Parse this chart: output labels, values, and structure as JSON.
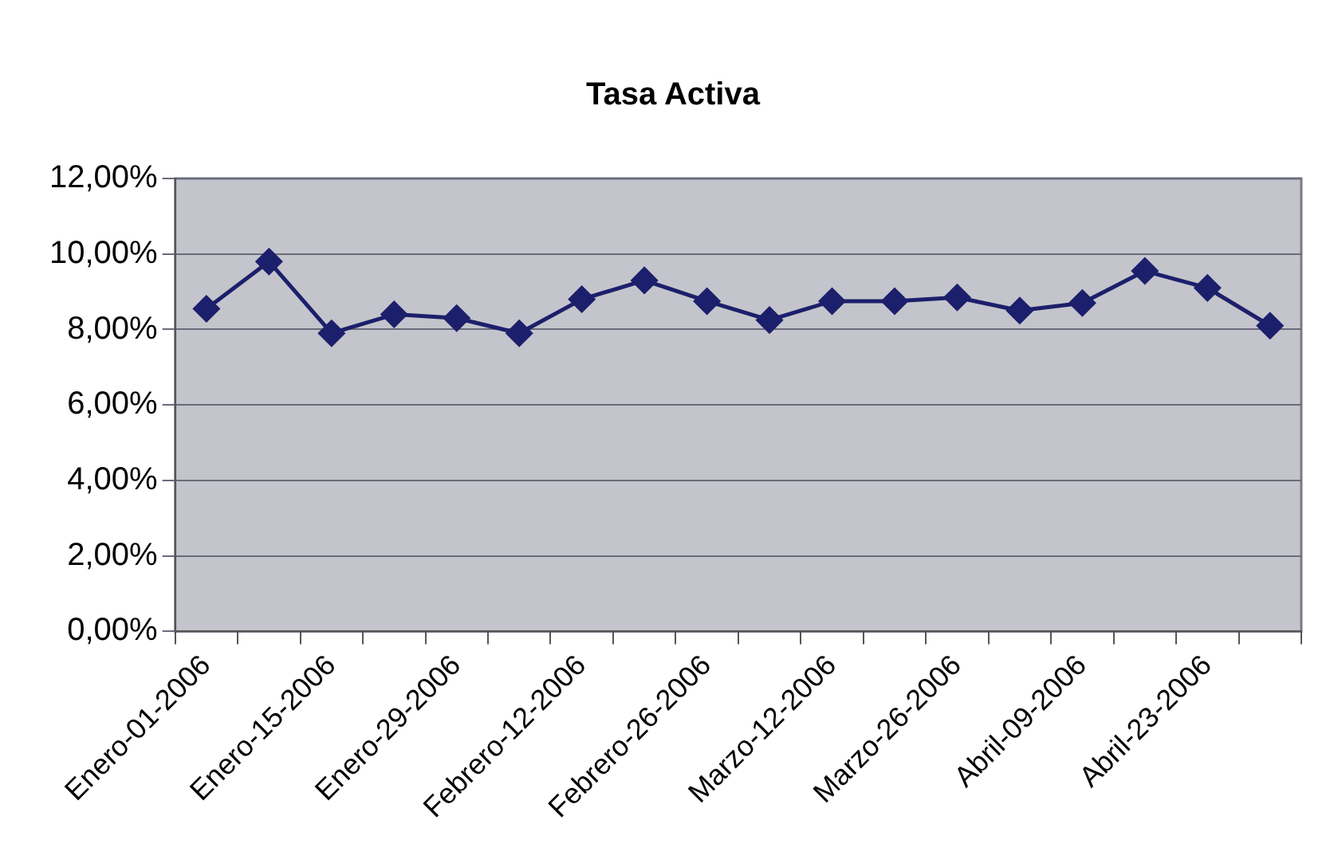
{
  "chart_data": {
    "type": "line",
    "title": "Tasa Activa",
    "categories": [
      "Enero-01-2006",
      null,
      "Enero-15-2006",
      null,
      "Enero-29-2006",
      null,
      "Febrero-12-2006",
      null,
      "Febrero-26-2006",
      null,
      "Marzo-12-2006",
      null,
      "Marzo-26-2006",
      null,
      "Abril-09-2006",
      null,
      "Abril-23-2006",
      null
    ],
    "series": [
      {
        "color": "#1c1f6b",
        "values": [
          8.55,
          9.8,
          7.9,
          8.4,
          8.3,
          7.9,
          8.8,
          9.3,
          8.75,
          8.25,
          8.75,
          8.75,
          8.85,
          8.5,
          8.7,
          9.55,
          9.1,
          8.1
        ]
      }
    ],
    "ylim": [
      0,
      12
    ],
    "yticks": [
      {
        "value": 0,
        "label": "0,00%"
      },
      {
        "value": 2,
        "label": "2,00%"
      },
      {
        "value": 4,
        "label": "4,00%"
      },
      {
        "value": 6,
        "label": "6,00%"
      },
      {
        "value": 8,
        "label": "8,00%"
      },
      {
        "value": 10,
        "label": "10,00%"
      },
      {
        "value": 12,
        "label": "12,00%"
      }
    ],
    "grid": "y",
    "legend": false,
    "marker": "diamond",
    "line_style": "solid"
  }
}
